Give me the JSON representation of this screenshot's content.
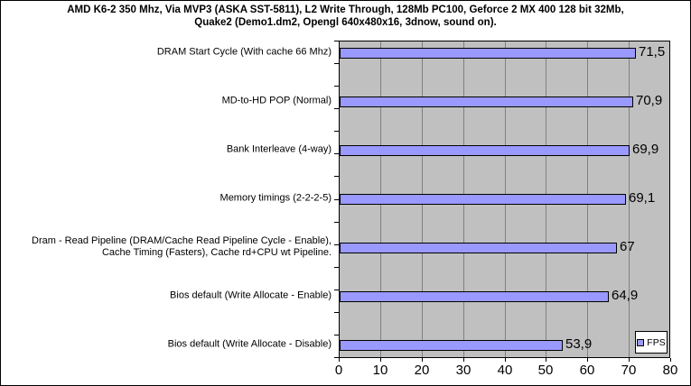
{
  "title": {
    "line1": "AMD K6-2 350 Mhz, Via MVP3 (ASKA SST-5811), L2 Write Through, 128Mb PC100, Geforce 2 MX 400 128 bit 32Mb,",
    "line2": "Quake2 (Demo1.dm2, Opengl 640x480x16, 3dnow, sound on)."
  },
  "legend": {
    "label": "FPS"
  },
  "chart_data": {
    "type": "bar",
    "orientation": "horizontal",
    "title": "AMD K6-2 350 Mhz, Via MVP3 (ASKA SST-5811), L2 Write Through, 128Mb PC100, Geforce 2 MX 400 128 bit 32Mb, Quake2 (Demo1.dm2, Opengl 640x480x16, 3dnow, sound on).",
    "categories": [
      "DRAM Start Cycle (With cache 66 Mhz)",
      "MD-to-HD POP (Normal)",
      "Bank Interleave (4-way)",
      "Memory timings (2-2-2-5)",
      "Dram - Read Pipeline (DRAM/Cache Read Pipeline Cycle - Enable), Cache Timing (Fasters), Cache rd+CPU wt Pipeline.",
      "Bios default (Write Allocate - Enable)",
      "Bios default (Write Allocate - Disable)"
    ],
    "series": [
      {
        "name": "FPS",
        "values": [
          71.5,
          70.9,
          69.9,
          69.1,
          67,
          64.9,
          53.9
        ]
      }
    ],
    "value_labels": [
      "71,5",
      "70,9",
      "69,9",
      "69,1",
      "67",
      "64,9",
      "53,9"
    ],
    "xlabel": "",
    "ylabel": "",
    "xlim": [
      0,
      80
    ],
    "x_ticks": [
      0,
      10,
      20,
      30,
      40,
      50,
      60,
      70,
      80
    ],
    "grid": "vertical-major",
    "legend_position": "bottom-right",
    "colors": {
      "bar_fill": "#9999FF",
      "bar_border": "#000000",
      "plot_bg": "#C0C0C0",
      "gridline": "#808080",
      "chart_bg": "#FFFFFF"
    }
  }
}
